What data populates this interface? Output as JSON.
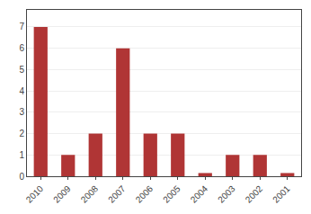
{
  "chart_data": {
    "type": "bar",
    "categories": [
      "2010",
      "2009",
      "2008",
      "2007",
      "2006",
      "2005",
      "2004",
      "2003",
      "2002",
      "2001"
    ],
    "values": [
      7,
      1,
      2,
      6,
      2,
      2,
      0.15,
      1,
      1,
      0.15
    ],
    "color": "#b03535",
    "ylim": [
      0,
      7.8
    ],
    "yticks": [
      0,
      1,
      2,
      3,
      4,
      5,
      6,
      7
    ],
    "grid": true
  }
}
